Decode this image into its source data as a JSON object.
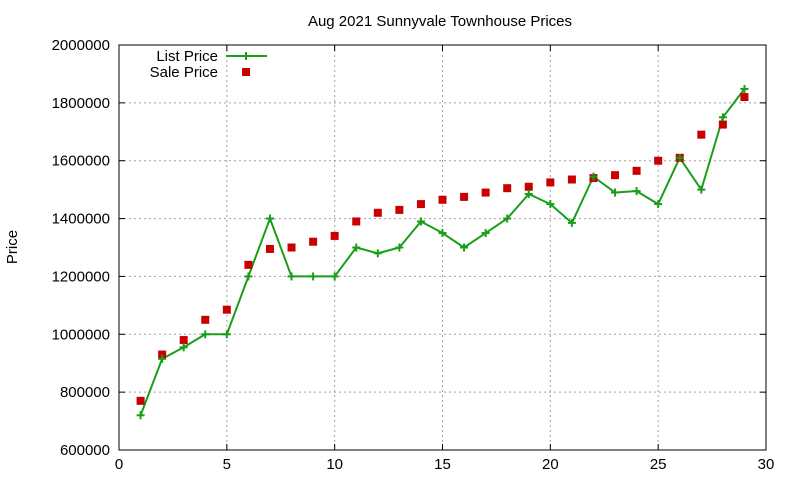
{
  "chart_data": {
    "type": "line",
    "title": "Aug 2021 Sunnyvale Townhouse Prices",
    "xlabel": "",
    "ylabel": "Price",
    "xlim": [
      0,
      30
    ],
    "ylim": [
      600000,
      2000000
    ],
    "x_ticks": [
      0,
      5,
      10,
      15,
      20,
      25,
      30
    ],
    "x_tick_labels": [
      "0",
      "5",
      "10",
      "15",
      "20",
      "25",
      "30"
    ],
    "y_ticks": [
      600000,
      800000,
      1000000,
      1200000,
      1400000,
      1600000,
      1800000,
      2000000
    ],
    "y_tick_labels": [
      "600000",
      "800000",
      "1000000",
      "1200000",
      "1400000",
      "1600000",
      "1800000",
      "2000000"
    ],
    "grid": true,
    "legend_position": "top-left",
    "series": [
      {
        "name": "List Price",
        "style": "line-with-plus-markers",
        "color": "#1a9e1a",
        "x": [
          1,
          2,
          3,
          4,
          5,
          6,
          7,
          8,
          9,
          10,
          11,
          12,
          13,
          14,
          15,
          16,
          17,
          18,
          19,
          20,
          21,
          22,
          23,
          24,
          25,
          26,
          27,
          28,
          29
        ],
        "values": [
          720000,
          915000,
          955000,
          1000000,
          1000000,
          1200000,
          1400000,
          1200000,
          1200000,
          1200000,
          1300000,
          1280000,
          1300000,
          1390000,
          1350000,
          1300000,
          1350000,
          1400000,
          1485000,
          1450000,
          1385000,
          1545000,
          1490000,
          1495000,
          1450000,
          1610000,
          1500000,
          1750000,
          1848000
        ]
      },
      {
        "name": "Sale Price",
        "style": "square-markers",
        "color": "#c80000",
        "x": [
          1,
          2,
          3,
          4,
          5,
          6,
          7,
          8,
          9,
          10,
          11,
          12,
          13,
          14,
          15,
          16,
          17,
          18,
          19,
          20,
          21,
          22,
          23,
          24,
          25,
          26,
          27,
          28,
          29
        ],
        "values": [
          770000,
          930000,
          980000,
          1050000,
          1085000,
          1240000,
          1295000,
          1300000,
          1320000,
          1340000,
          1390000,
          1420000,
          1430000,
          1450000,
          1465000,
          1475000,
          1490000,
          1505000,
          1510000,
          1525000,
          1535000,
          1540000,
          1550000,
          1565000,
          1600000,
          1610000,
          1690000,
          1725000,
          1820000
        ]
      }
    ]
  }
}
